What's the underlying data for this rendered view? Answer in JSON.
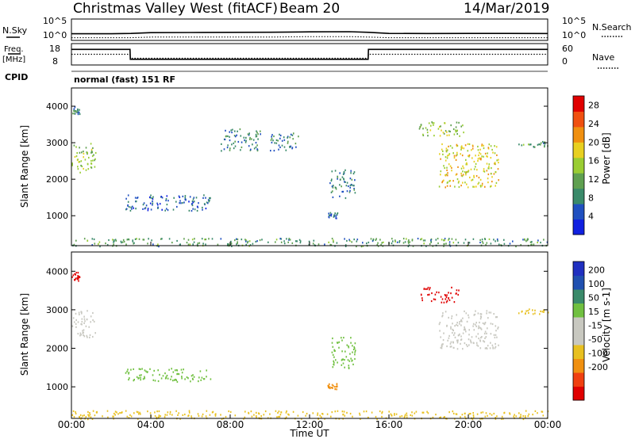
{
  "header": {
    "title": "Christmas Valley West (fitACF)",
    "beam": "Beam 20",
    "date": "14/Mar/2019"
  },
  "top_panels": {
    "nsky_label": "N.Sky",
    "nsearch_label": "N.Search",
    "noise_ticks_left": [
      "10^5",
      "10^0"
    ],
    "noise_ticks_right": [
      "10^5",
      "10^0"
    ],
    "freq_label_1": "Freq.",
    "freq_label_2": "[MHz]",
    "freq_ticks": [
      "18",
      "8"
    ],
    "nave_label": "Nave",
    "nave_ticks": [
      "60",
      "0"
    ],
    "cpid_label": "CPID",
    "cpid_text": "normal (fast) 151 RF"
  },
  "colors": {
    "power_scale": [
      "#1020e0",
      "#2050c0",
      "#3a8a6a",
      "#5fa050",
      "#9acd32",
      "#e8d020",
      "#f09010",
      "#f05010",
      "#e00000"
    ],
    "velocity_scale": [
      "#e00000",
      "#f04010",
      "#f09010",
      "#e8c020",
      "#c8c8c0",
      "#c8c8c0",
      "#70c040",
      "#3a8a6a",
      "#2050b0",
      "#2030c0"
    ]
  },
  "chart_data": [
    {
      "type": "line",
      "name": "noise",
      "ylabel_left": "N.Sky",
      "ylabel_right": "N.Search",
      "x": [
        "00:00",
        "02:00",
        "03:00",
        "04:00",
        "06:00",
        "08:00",
        "10:00",
        "12:00",
        "14:00",
        "15:00",
        "16:00",
        "18:00",
        "20:00",
        "22:00",
        "24:00"
      ],
      "series": [
        {
          "name": "N.Sky",
          "values": [
            25,
            25,
            30,
            50,
            55,
            60,
            65,
            80,
            90,
            60,
            30,
            28,
            30,
            30,
            28
          ]
        },
        {
          "name": "N.Search",
          "values": [
            2,
            2,
            2,
            3,
            3,
            3,
            3,
            4,
            4,
            3,
            2,
            2,
            2,
            2,
            2
          ]
        }
      ],
      "yscale": "log",
      "ylim": [
        1,
        100000
      ]
    },
    {
      "type": "line",
      "name": "frequency-nave",
      "ylabel_left": "Freq. [MHz]",
      "ylabel_right": "Nave",
      "ylim_left": [
        8,
        18
      ],
      "ylim_right": [
        0,
        60
      ],
      "series": [
        {
          "name": "Freq.",
          "x": [
            "00:00",
            "02:57",
            "02:58",
            "14:57",
            "14:58",
            "24:00"
          ],
          "values": [
            15.5,
            15.5,
            10.5,
            10.5,
            15.5,
            15.5
          ]
        },
        {
          "name": "Nave",
          "x": [
            "00:00",
            "02:57",
            "02:58",
            "14:57",
            "14:58",
            "24:00"
          ],
          "values": [
            30,
            30,
            18,
            18,
            30,
            30
          ]
        }
      ]
    },
    {
      "type": "heatmap",
      "name": "power",
      "xlabel": "",
      "ylabel": "Slant Range [km]",
      "xticks": [
        "00:00",
        "04:00",
        "08:00",
        "12:00",
        "16:00",
        "20:00",
        "00:00"
      ],
      "yticks": [
        "1000",
        "2000",
        "3000",
        "4000"
      ],
      "ylim": [
        180,
        4500
      ],
      "colorbar_label": "Power [dB]",
      "colorbar_ticks": [
        "4",
        "8",
        "12",
        "16",
        "20",
        "24",
        "28"
      ],
      "regions": [
        {
          "t0": 0.0,
          "t1": 1.2,
          "r0": 2200,
          "r1": 3000,
          "value": 14
        },
        {
          "t0": 0.0,
          "t1": 0.4,
          "r0": 3800,
          "r1": 4000,
          "value": 8
        },
        {
          "t0": 2.7,
          "t1": 7.0,
          "r0": 1150,
          "r1": 1600,
          "value": 6
        },
        {
          "t0": 7.5,
          "t1": 9.5,
          "r0": 2800,
          "r1": 3400,
          "value": 8
        },
        {
          "t0": 10.0,
          "t1": 11.5,
          "r0": 2800,
          "r1": 3300,
          "value": 8
        },
        {
          "t0": 12.9,
          "t1": 13.4,
          "r0": 950,
          "r1": 1100,
          "value": 6
        },
        {
          "t0": 13.0,
          "t1": 14.3,
          "r0": 1500,
          "r1": 2300,
          "value": 8
        },
        {
          "t0": 17.5,
          "t1": 19.8,
          "r0": 3200,
          "r1": 3600,
          "value": 14
        },
        {
          "t0": 18.5,
          "t1": 21.5,
          "r0": 1800,
          "r1": 3000,
          "value": 18
        },
        {
          "t0": 22.5,
          "t1": 24.0,
          "r0": 2900,
          "r1": 3050,
          "value": 10
        },
        {
          "t0": 0.0,
          "t1": 24.0,
          "r0": 180,
          "r1": 400,
          "value": 10
        }
      ]
    },
    {
      "type": "heatmap",
      "name": "velocity",
      "xlabel": "Time UT",
      "ylabel": "Slant Range [km]",
      "xticks": [
        "00:00",
        "04:00",
        "08:00",
        "12:00",
        "16:00",
        "20:00",
        "00:00"
      ],
      "yticks": [
        "1000",
        "2000",
        "3000",
        "4000"
      ],
      "ylim": [
        180,
        4500
      ],
      "colorbar_label": "Velocity [m s-1]",
      "colorbar_ticks": [
        "200",
        "100",
        "50",
        "15",
        "-15",
        "-50",
        "-100",
        "-200"
      ],
      "regions": [
        {
          "t0": 0.0,
          "t1": 1.2,
          "r0": 2300,
          "r1": 3000,
          "value": 0
        },
        {
          "t0": 0.0,
          "t1": 0.4,
          "r0": 3750,
          "r1": 4000,
          "value": -250
        },
        {
          "t0": 2.7,
          "t1": 7.0,
          "r0": 1150,
          "r1": 1500,
          "value": 20
        },
        {
          "t0": 12.9,
          "t1": 13.4,
          "r0": 950,
          "r1": 1100,
          "value": -60
        },
        {
          "t0": 13.0,
          "t1": 14.3,
          "r0": 1500,
          "r1": 2300,
          "value": 30
        },
        {
          "t0": 17.5,
          "t1": 19.5,
          "r0": 3200,
          "r1": 3600,
          "value": -250
        },
        {
          "t0": 18.5,
          "t1": 21.5,
          "r0": 2000,
          "r1": 3000,
          "value": 0
        },
        {
          "t0": 22.5,
          "t1": 24.0,
          "r0": 2900,
          "r1": 3050,
          "value": -20
        },
        {
          "t0": 0.0,
          "t1": 24.0,
          "r0": 180,
          "r1": 400,
          "value": -30
        }
      ]
    }
  ]
}
